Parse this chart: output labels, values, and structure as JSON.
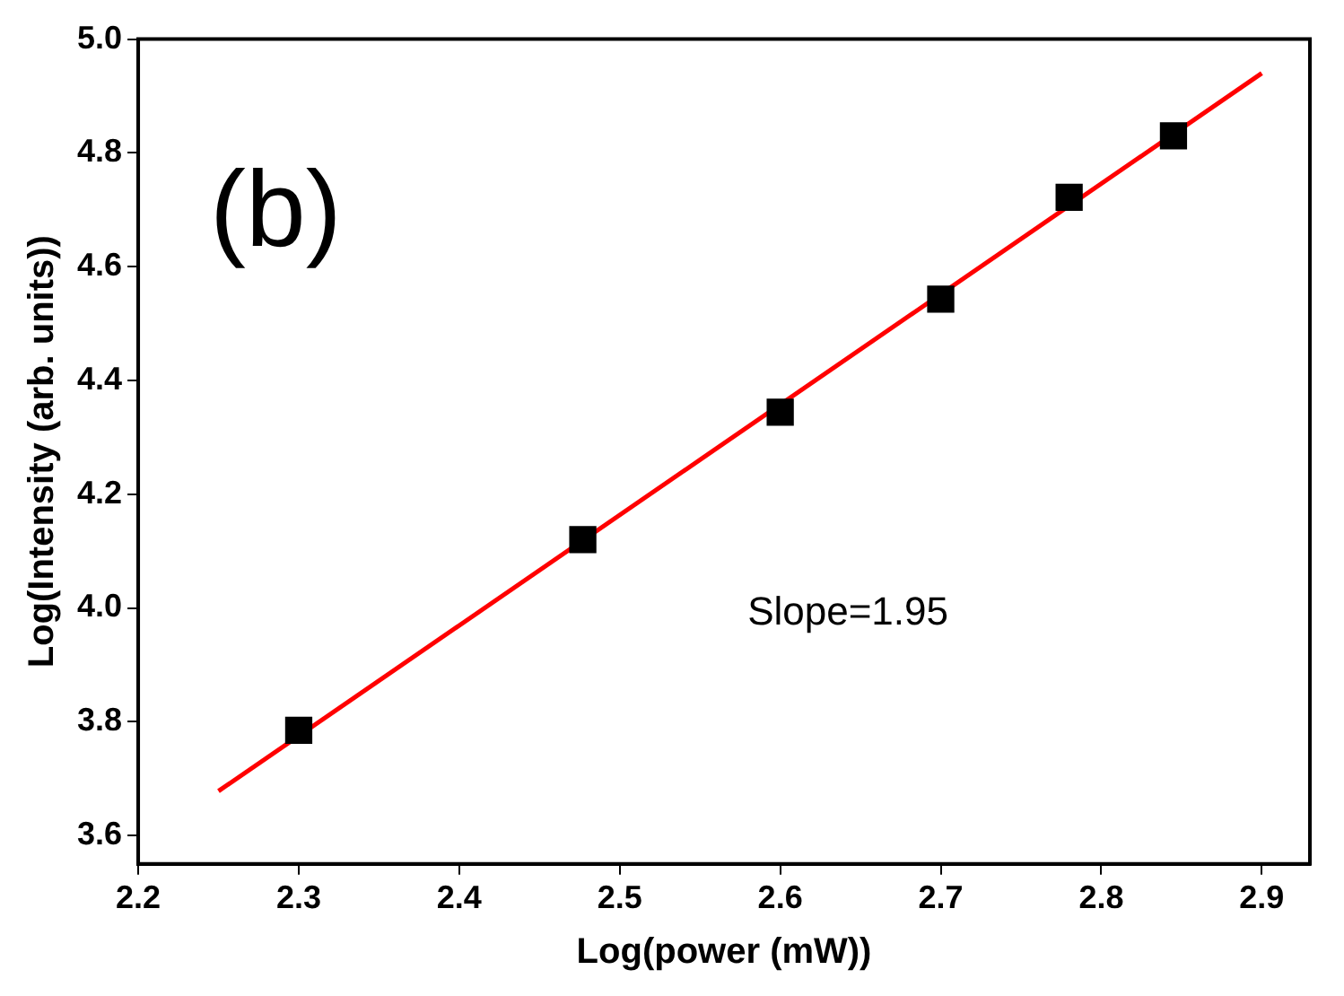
{
  "chart_data": {
    "type": "scatter",
    "xlabel": "Log(power (mW))",
    "ylabel": "Log(Intensity (arb. units))",
    "annotations": [
      "(b)",
      "Slope=1.95"
    ],
    "series": [
      {
        "color": "#000000",
        "marker": "square",
        "x": [
          2.3,
          2.477,
          2.6,
          2.7,
          2.78,
          2.845
        ],
        "values": [
          3.785,
          4.12,
          4.344,
          4.543,
          4.722,
          4.83
        ]
      },
      {
        "type": "line",
        "color": "#ff0000",
        "marker": "none",
        "line_style": "solid",
        "x": [
          2.25,
          2.9
        ],
        "values": [
          3.678,
          4.94
        ]
      }
    ],
    "xlim": [
      2.2,
      2.93
    ],
    "xticks": [
      2.2,
      2.3,
      2.4,
      2.5,
      2.6,
      2.7,
      2.8,
      2.9
    ],
    "ylim": [
      3.55,
      5.0
    ],
    "yticks": [
      3.6,
      3.8,
      {
        "value": 4,
        "label": "4.0"
      },
      4.2,
      4.4,
      4.6,
      4.8,
      {
        "value": 5,
        "label": "5.0"
      }
    ],
    "grid": false,
    "legend": false
  }
}
